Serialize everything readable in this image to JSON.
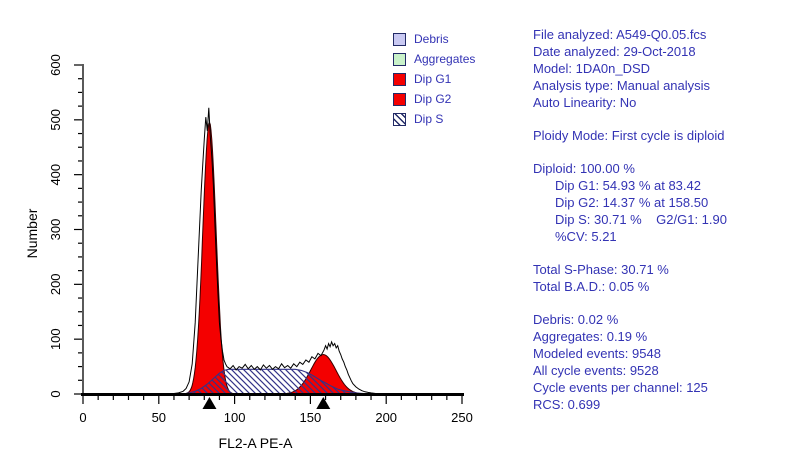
{
  "colors": {
    "text_blue": "#3333b4",
    "axis": "#000000",
    "red_fill": "#f40000",
    "red_stroke": "#3a0000",
    "hatch_line": "#333388",
    "raw_line": "#000000",
    "debris_swatch": "#c9c9f2",
    "aggregates_swatch": "#c9f2c9",
    "marker": "#000000"
  },
  "legend": {
    "items": [
      {
        "key": "debris",
        "label": "Debris",
        "swatch": "debris"
      },
      {
        "key": "aggregates",
        "label": "Aggregates",
        "swatch": "aggregates"
      },
      {
        "key": "dip-g1",
        "label": "Dip G1",
        "swatch": "red"
      },
      {
        "key": "dip-g2",
        "label": "Dip G2",
        "swatch": "red"
      },
      {
        "key": "dip-s",
        "label": "Dip S",
        "swatch": "hatch"
      }
    ]
  },
  "info_panel": {
    "groups": [
      {
        "lines": [
          {
            "name": "file-analyzed",
            "text": "File analyzed: A549-Q0.05.fcs"
          },
          {
            "name": "date-analyzed",
            "text": "Date analyzed: 29-Oct-2018"
          },
          {
            "name": "model",
            "text": "Model: 1DA0n_DSD"
          },
          {
            "name": "analysis-type",
            "text": "Analysis type: Manual analysis"
          },
          {
            "name": "auto-linearity",
            "text": "Auto Linearity: No"
          }
        ]
      },
      {
        "lines": [
          {
            "name": "ploidy-mode",
            "text": "Ploidy Mode: First cycle is diploid"
          }
        ]
      },
      {
        "lines": [
          {
            "name": "diploid-percent",
            "text": "Diploid: 100.00 %"
          },
          {
            "name": "dip-g1-stat",
            "text": "Dip G1: 54.93 % at 83.42",
            "indent": true
          },
          {
            "name": "dip-g2-stat",
            "text": "Dip G2: 14.37 % at 158.50",
            "indent": true
          },
          {
            "name": "dip-s-stat",
            "text": "Dip S: 30.71 %    G2/G1: 1.90",
            "indent": true
          },
          {
            "name": "cv-stat",
            "text": "%CV: 5.21",
            "indent": true
          }
        ]
      },
      {
        "lines": [
          {
            "name": "total-s-phase",
            "text": "Total S-Phase: 30.71 %"
          },
          {
            "name": "total-bad",
            "text": "Total B.A.D.: 0.05 %"
          }
        ]
      },
      {
        "lines": [
          {
            "name": "debris-percent",
            "text": "Debris: 0.02 %"
          },
          {
            "name": "aggregates-percent",
            "text": "Aggregates: 0.19 %"
          },
          {
            "name": "modeled-events",
            "text": "Modeled events: 9548"
          },
          {
            "name": "all-cycle-events",
            "text": "All cycle events: 9528"
          },
          {
            "name": "cycle-events-per-channel",
            "text": "Cycle events per channel: 125"
          },
          {
            "name": "rcs",
            "text": "RCS: 0.699"
          }
        ]
      }
    ]
  },
  "chart_data": {
    "type": "area",
    "title": "",
    "xlabel": "FL2-A PE-A",
    "ylabel": "Number",
    "xlim": [
      0,
      250
    ],
    "ylim": [
      0,
      600
    ],
    "x_major_ticks": [
      0,
      50,
      100,
      150,
      200,
      250
    ],
    "x_minor_step": 10,
    "y_major_ticks": [
      0,
      100,
      200,
      300,
      400,
      500,
      600
    ],
    "y_minor_step": 25,
    "grid": false,
    "legend_position": "top-right",
    "peak_markers_x": [
      83.42,
      158.5
    ],
    "series": [
      {
        "name": "Dip G1",
        "render": "gaussian",
        "mean": 83.42,
        "sd": 4.35,
        "amplitude": 495,
        "cv_percent": 5.21,
        "style": "red"
      },
      {
        "name": "Dip G2",
        "render": "gaussian",
        "mean": 158.5,
        "sd": 8.3,
        "amplitude": 72,
        "style": "red"
      },
      {
        "name": "Dip S",
        "render": "area_hatched",
        "points": [
          [
            66,
            0
          ],
          [
            70,
            2
          ],
          [
            74,
            5
          ],
          [
            78,
            10
          ],
          [
            82,
            18
          ],
          [
            86,
            28
          ],
          [
            90,
            38
          ],
          [
            93,
            43
          ],
          [
            96,
            45
          ],
          [
            140,
            45
          ],
          [
            144,
            43
          ],
          [
            148,
            39
          ],
          [
            152,
            33
          ],
          [
            156,
            26
          ],
          [
            160,
            20
          ],
          [
            164,
            14
          ],
          [
            168,
            9
          ],
          [
            172,
            6
          ],
          [
            176,
            4
          ],
          [
            180,
            2
          ],
          [
            185,
            1
          ],
          [
            190,
            0
          ]
        ]
      },
      {
        "name": "Raw data",
        "render": "line",
        "points": [
          [
            55,
            0
          ],
          [
            60,
            1
          ],
          [
            63,
            2
          ],
          [
            66,
            5
          ],
          [
            68,
            10
          ],
          [
            70,
            22
          ],
          [
            72,
            55
          ],
          [
            74,
            130
          ],
          [
            76,
            250
          ],
          [
            78,
            370
          ],
          [
            79,
            420
          ],
          [
            80,
            465
          ],
          [
            81,
            505
          ],
          [
            82,
            480
          ],
          [
            83,
            522
          ],
          [
            84,
            470
          ],
          [
            85,
            430
          ],
          [
            86,
            380
          ],
          [
            87,
            310
          ],
          [
            88,
            245
          ],
          [
            89,
            185
          ],
          [
            90,
            130
          ],
          [
            91,
            100
          ],
          [
            92,
            78
          ],
          [
            93,
            62
          ],
          [
            94,
            55
          ],
          [
            95,
            50
          ],
          [
            97,
            46
          ],
          [
            99,
            52
          ],
          [
            101,
            44
          ],
          [
            103,
            50
          ],
          [
            105,
            47
          ],
          [
            107,
            54
          ],
          [
            109,
            46
          ],
          [
            111,
            52
          ],
          [
            113,
            45
          ],
          [
            115,
            50
          ],
          [
            117,
            44
          ],
          [
            119,
            53
          ],
          [
            121,
            47
          ],
          [
            123,
            52
          ],
          [
            125,
            45
          ],
          [
            127,
            50
          ],
          [
            129,
            46
          ],
          [
            131,
            55
          ],
          [
            133,
            48
          ],
          [
            135,
            52
          ],
          [
            137,
            47
          ],
          [
            139,
            55
          ],
          [
            141,
            50
          ],
          [
            143,
            58
          ],
          [
            145,
            54
          ],
          [
            147,
            62
          ],
          [
            149,
            58
          ],
          [
            151,
            68
          ],
          [
            153,
            64
          ],
          [
            155,
            74
          ],
          [
            157,
            70
          ],
          [
            159,
            80
          ],
          [
            160,
            88
          ],
          [
            161,
            82
          ],
          [
            162,
            92
          ],
          [
            163,
            86
          ],
          [
            164,
            95
          ],
          [
            165,
            88
          ],
          [
            166,
            92
          ],
          [
            167,
            84
          ],
          [
            168,
            88
          ],
          [
            169,
            78
          ],
          [
            170,
            72
          ],
          [
            171,
            64
          ],
          [
            172,
            58
          ],
          [
            173,
            50
          ],
          [
            174,
            44
          ],
          [
            175,
            36
          ],
          [
            176,
            30
          ],
          [
            177,
            24
          ],
          [
            178,
            19
          ],
          [
            180,
            13
          ],
          [
            182,
            9
          ],
          [
            184,
            6
          ],
          [
            186,
            4
          ],
          [
            188,
            3
          ],
          [
            190,
            2
          ],
          [
            193,
            1
          ],
          [
            196,
            0
          ]
        ]
      }
    ]
  }
}
